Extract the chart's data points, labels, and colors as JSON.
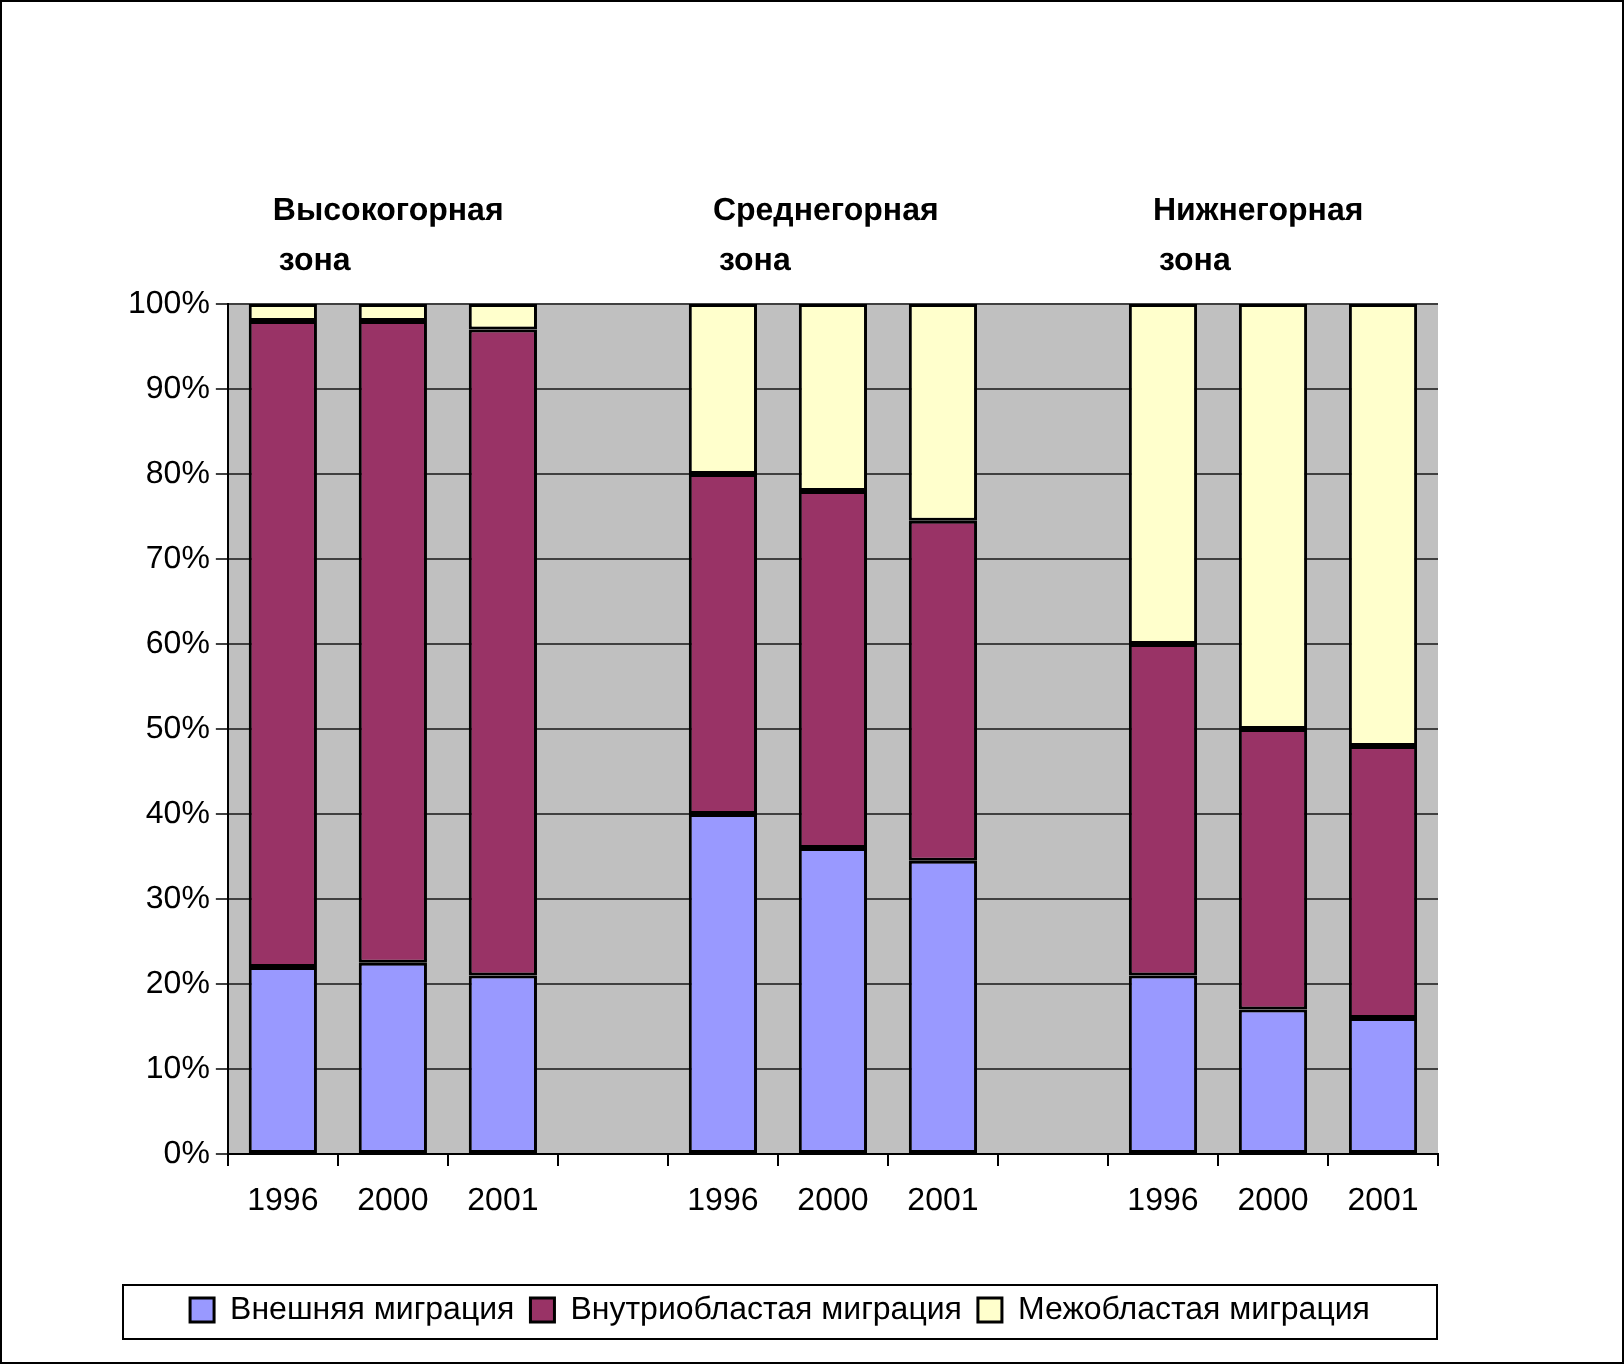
{
  "chart_data": {
    "type": "bar",
    "stacked": true,
    "categories": [
      "1996",
      "2000",
      "2001",
      null,
      "1996",
      "2000",
      "2001",
      null,
      "1996",
      "2000",
      "2001"
    ],
    "series": [
      {
        "name": "Внешняя миграция",
        "color": "#9999ff",
        "values": [
          22,
          22.5,
          21,
          null,
          40,
          36,
          34.5,
          null,
          21,
          17,
          16
        ]
      },
      {
        "name": "Внутриобластая миграция",
        "color": "#993366",
        "values": [
          76,
          75.5,
          76,
          null,
          40,
          42,
          40,
          null,
          39,
          33,
          32
        ]
      },
      {
        "name": "Межобластая миграция",
        "color": "#ffffcc",
        "values": [
          2,
          2,
          3,
          null,
          20,
          22,
          25.5,
          null,
          40,
          50,
          52
        ]
      }
    ],
    "ylim": [
      0,
      100
    ],
    "yticks": [
      {
        "value": 0,
        "label": "0%"
      },
      {
        "value": 10,
        "label": "10%"
      },
      {
        "value": 20,
        "label": "20%"
      },
      {
        "value": 30,
        "label": "30%"
      },
      {
        "value": 40,
        "label": "40%"
      },
      {
        "value": 50,
        "label": "50%"
      },
      {
        "value": 60,
        "label": "60%"
      },
      {
        "value": 70,
        "label": "70%"
      },
      {
        "value": 80,
        "label": "80%"
      },
      {
        "value": 90,
        "label": "90%"
      },
      {
        "value": 100,
        "label": "100%"
      }
    ],
    "grid": "y",
    "legend": "bottom",
    "annotations": [
      "Высокогорная\nзона",
      "Среднегорная\nзона",
      "Нижнегорная\nзона"
    ]
  }
}
